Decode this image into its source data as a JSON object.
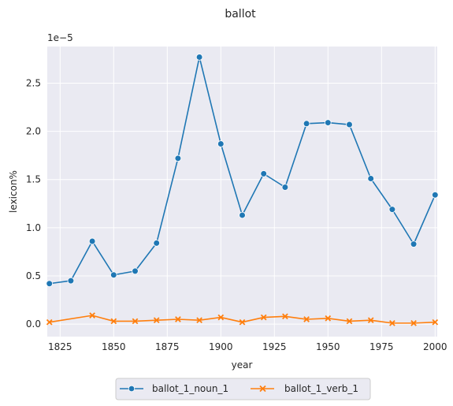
{
  "chart_data": {
    "type": "line",
    "title": "ballot",
    "xlabel": "year",
    "ylabel": "lexicon%",
    "y_offset_label": "1e−5",
    "xlim": [
      1819,
      2001
    ],
    "ylim": [
      -0.13,
      2.88
    ],
    "x_ticks": [
      1825,
      1850,
      1875,
      1900,
      1925,
      1950,
      1975,
      2000
    ],
    "y_ticks": [
      0.0,
      0.5,
      1.0,
      1.5,
      2.0,
      2.5
    ],
    "y_tick_labels": [
      "0.0",
      "0.5",
      "1.0",
      "1.5",
      "2.0",
      "2.5"
    ],
    "grid": true,
    "legend_position": "bottom-center",
    "x": [
      1820,
      1830,
      1840,
      1850,
      1860,
      1870,
      1880,
      1890,
      1900,
      1910,
      1920,
      1930,
      1940,
      1950,
      1960,
      1970,
      1980,
      1990,
      2000
    ],
    "series": [
      {
        "name": "ballot_1_noun_1",
        "color": "#1f77b4",
        "marker": "circle",
        "values": [
          0.42,
          0.45,
          0.86,
          0.51,
          0.55,
          0.84,
          1.72,
          2.77,
          1.87,
          1.13,
          1.56,
          1.42,
          2.08,
          2.09,
          2.07,
          1.51,
          1.19,
          0.83,
          1.34
        ]
      },
      {
        "name": "ballot_1_verb_1",
        "color": "#ff7f0e",
        "marker": "x",
        "values": [
          0.02,
          null,
          0.09,
          0.03,
          0.03,
          0.04,
          0.05,
          0.04,
          0.07,
          0.02,
          0.07,
          0.08,
          0.05,
          0.06,
          0.03,
          0.04,
          0.01,
          0.01,
          0.02
        ]
      }
    ]
  }
}
